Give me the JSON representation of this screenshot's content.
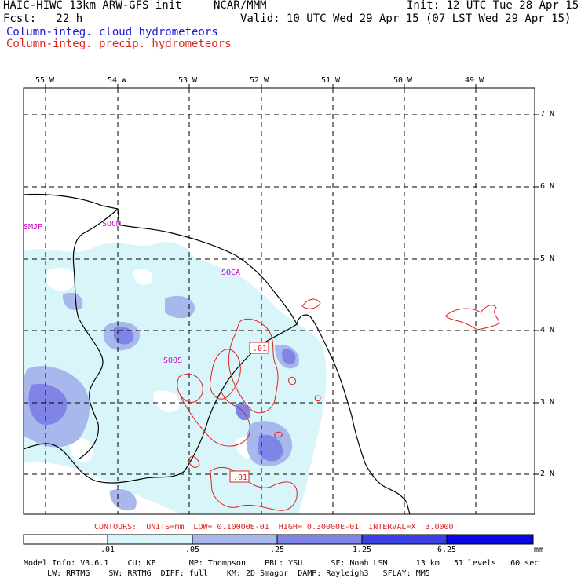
{
  "header": {
    "model": "HAIC-HIWC 13km ARW-GFS init",
    "org": "NCAR/MMM",
    "init": "Init: 12 UTC Tue 28 Apr 15",
    "fcst": "Fcst:   22 h",
    "valid": "Valid: 10 UTC Wed 29 Apr 15 (07 LST Wed 29 Apr 15)",
    "field_cloud": "Column-integ. cloud hydrometeors",
    "field_precip": "Column-integ. precip. hydrometeors"
  },
  "colors": {
    "cloud_title": "#1a1ad6",
    "precip_title": "#e0201c",
    "cloud_level1": "#d8f6fa",
    "cloud_level2": "#a8b8ec",
    "cloud_level3": "#7f84e6",
    "cloud_level4": "#3a40e6",
    "cloud_level5": "#0808e0",
    "contour": "#e02020",
    "station": "#cc00cc"
  },
  "map": {
    "lon_labels": [
      "55 W",
      "54 W",
      "53 W",
      "52 W",
      "51 W",
      "50 W",
      "49 W"
    ],
    "lat_labels": [
      "7 N",
      "6 N",
      "5 N",
      "4 N",
      "3 N",
      "2 N"
    ],
    "stations": [
      "SMJP",
      "SOCM",
      "SOCA",
      "SOOS"
    ],
    "contour_labels": [
      ".01",
      ".01"
    ]
  },
  "contours_info": "CONTOURS:  UNITS=mm  LOW= 0.10000E-01  HIGH= 0.30000E-01  INTERVAL=X  3.0000",
  "colorbar": {
    "labels": [
      ".01",
      ".05",
      ".25",
      "1.25",
      "6.25"
    ],
    "unit": "mm"
  },
  "model_info": {
    "line1": "Model Info: V3.6.1    CU: KF       MP: Thompson    PBL: YSU      SF: Noah LSM      13 km   51 levels   60 sec",
    "line2": "     LW: RRTMG    SW: RRTMG  DIFF: full    KM: 2D Smagor  DAMP: Rayleigh3   SFLAY: MM5"
  }
}
